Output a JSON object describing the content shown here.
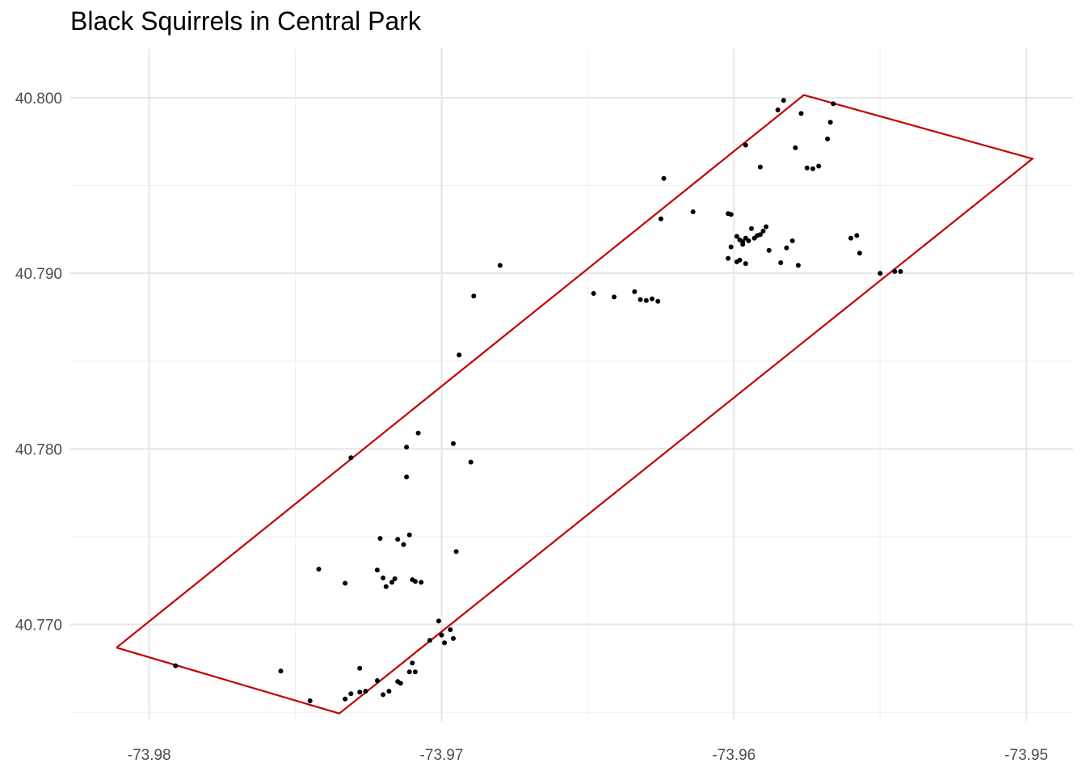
{
  "chart_data": {
    "type": "scatter",
    "title": "Black Squirrels in Central Park",
    "xlabel": "",
    "ylabel": "",
    "xlim": [
      -73.9827,
      -73.9484
    ],
    "ylim": [
      40.7645,
      40.8028
    ],
    "grid": true,
    "x_ticks": [
      -73.98,
      -73.97,
      -73.96,
      -73.95
    ],
    "x_tick_labels": [
      "-73.98",
      "-73.97",
      "-73.96",
      "-73.95"
    ],
    "y_ticks": [
      40.77,
      40.78,
      40.79,
      40.8
    ],
    "y_tick_labels": [
      "40.770",
      "40.780",
      "40.790",
      "40.800"
    ],
    "colors": {
      "boundary": "#c00000",
      "points": "#000000",
      "grid_major": "#e6e6e6",
      "grid_minor": "#f0f0f0"
    },
    "boundary": {
      "x": [
        -73.98112,
        -73.9735,
        -73.94979,
        -73.95761,
        -73.98112
      ],
      "y": [
        40.76868,
        40.76493,
        40.79652,
        40.80015,
        40.76868
      ]
    },
    "points": {
      "x": [
        -73.9791,
        -73.9755,
        -73.9745,
        -73.9733,
        -73.9731,
        -73.9728,
        -73.9726,
        -73.9728,
        -73.9722,
        -73.972,
        -73.9718,
        -73.9715,
        -73.9714,
        -73.9709,
        -73.9711,
        -73.971,
        -73.9704,
        -73.97,
        -73.9697,
        -73.9701,
        -73.9699,
        -73.9696,
        -73.9695,
        -73.9742,
        -73.9733,
        -73.9722,
        -73.972,
        -73.9719,
        -73.9717,
        -73.9715,
        -73.9713,
        -73.9711,
        -73.971,
        -73.9709,
        -73.9707,
        -73.9721,
        -73.9716,
        -73.9712,
        -73.9696,
        -73.9712,
        -73.9708,
        -73.9694,
        -73.969,
        -73.968,
        -73.9731,
        -73.9689,
        -73.9648,
        -73.9641,
        -73.9634,
        -73.9632,
        -73.963,
        -73.9628,
        -73.9626,
        -73.9625,
        -73.9624,
        -73.9614,
        -73.9602,
        -73.9601,
        -73.9599,
        -73.9596,
        -73.9598,
        -73.9597,
        -73.9595,
        -73.9593,
        -73.9591,
        -73.959,
        -73.9589,
        -73.9594,
        -73.9592,
        -73.9597,
        -73.9599,
        -73.9596,
        -73.9598,
        -73.9601,
        -73.9602,
        -73.9588,
        -73.9584,
        -73.958,
        -73.9578,
        -73.9575,
        -73.9573,
        -73.9571,
        -73.9585,
        -73.9583,
        -73.9577,
        -73.9567,
        -73.9568,
        -73.9566,
        -73.956,
        -73.9591,
        -73.9582,
        -73.9579,
        -73.9596,
        -73.9558,
        -73.9557,
        -73.955,
        -73.9545,
        -73.9543
      ],
      "y": [
        40.76765,
        40.76735,
        40.76565,
        40.76575,
        40.76605,
        40.76615,
        40.7662,
        40.7675,
        40.7668,
        40.766,
        40.7662,
        40.76675,
        40.76665,
        40.7673,
        40.7673,
        40.7678,
        40.7691,
        40.7694,
        40.7697,
        40.7702,
        40.76895,
        40.7692,
        40.77415,
        40.77315,
        40.77235,
        40.7731,
        40.77265,
        40.77215,
        40.7724,
        40.77485,
        40.77455,
        40.7751,
        40.77255,
        40.77245,
        40.7724,
        40.7749,
        40.7726,
        40.7784,
        40.7803,
        40.7801,
        40.7809,
        40.78535,
        40.77925,
        40.79045,
        40.7795,
        40.7887,
        40.78885,
        40.78865,
        40.78895,
        40.7885,
        40.78845,
        40.78855,
        40.7884,
        40.7931,
        40.7954,
        40.7935,
        40.7934,
        40.79335,
        40.7921,
        40.792,
        40.7919,
        40.7918,
        40.79185,
        40.792,
        40.7922,
        40.7924,
        40.79265,
        40.79255,
        40.79215,
        40.79165,
        40.79065,
        40.79055,
        40.79075,
        40.7915,
        40.79085,
        40.7913,
        40.7906,
        40.79185,
        40.79045,
        40.796,
        40.79595,
        40.7961,
        40.7993,
        40.79985,
        40.7991,
        40.7986,
        40.79765,
        40.79965,
        40.792,
        40.79605,
        40.79145,
        40.79715,
        40.7973,
        40.79215,
        40.79115,
        40.79,
        40.7901,
        40.7901
      ]
    }
  }
}
